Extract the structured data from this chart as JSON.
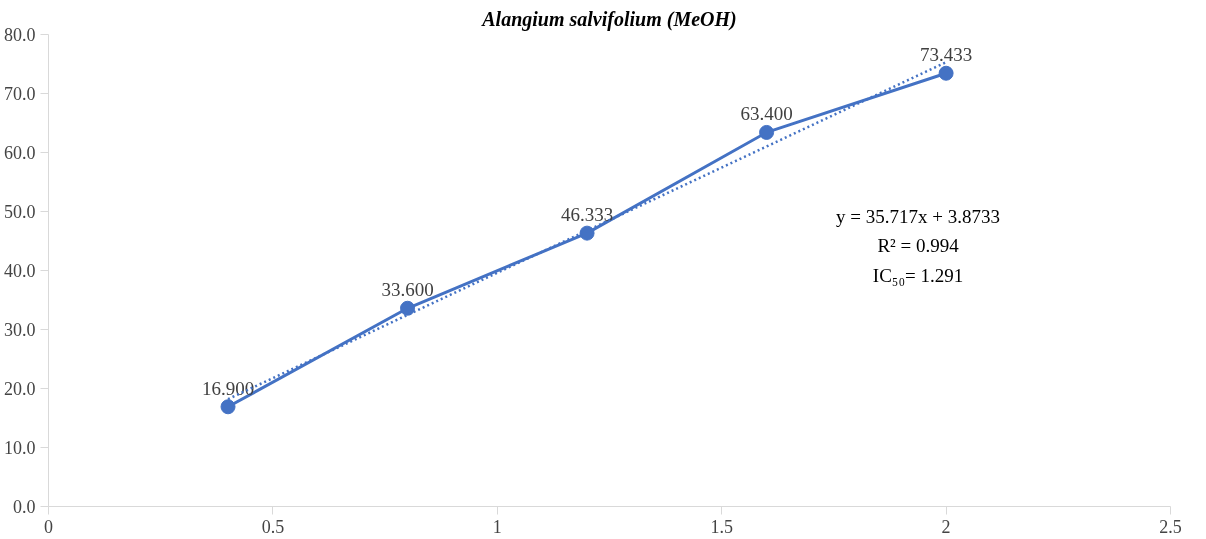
{
  "chart_data": {
    "type": "line",
    "title": "Alangium salvifolium (MeOH)",
    "xlim": [
      0,
      2.5
    ],
    "ylim": [
      0,
      80
    ],
    "xticks": [
      0,
      0.5,
      1,
      1.5,
      2,
      2.5
    ],
    "yticks": [
      {
        "value": 0,
        "label": "0.0"
      },
      {
        "value": 10,
        "label": "10.0"
      },
      {
        "value": 20,
        "label": "20.0"
      },
      {
        "value": 30,
        "label": "30.0"
      },
      {
        "value": 40,
        "label": "40.0"
      },
      {
        "value": 50,
        "label": "50.0"
      },
      {
        "value": 60,
        "label": "60.0"
      },
      {
        "value": 70,
        "label": "70.0"
      },
      {
        "value": 80,
        "label": "80.0"
      }
    ],
    "series": [
      {
        "color": "#4472c4",
        "marker": "circle",
        "line_style": "solid",
        "x": [
          0.4,
          0.8,
          1.2,
          1.6,
          2.0
        ],
        "values": [
          16.9,
          33.6,
          46.333,
          63.4,
          73.433
        ],
        "value_labels": [
          "16.900",
          "33.600",
          "46.333",
          "63.400",
          "73.433"
        ]
      },
      {
        "color": "#4472c4",
        "marker": "none",
        "line_style": "dotted",
        "x": [
          0.4,
          2.0
        ],
        "values": [
          18.2,
          75.3
        ]
      }
    ],
    "annotations": [
      "y = 35.717x + 3.8733",
      "R² = 0.994",
      "IC₅₀= 1.291"
    ]
  }
}
